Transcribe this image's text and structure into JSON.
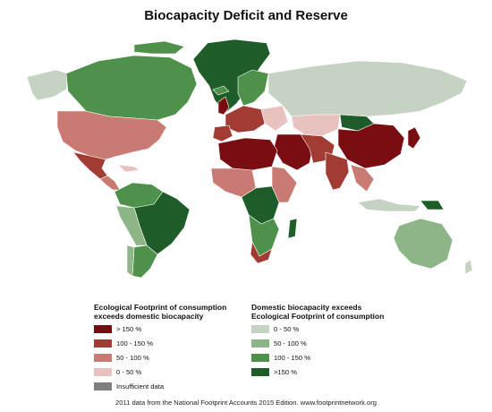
{
  "title": "Biocapacity Deficit and Reserve",
  "footer": "2011 data from the National Footprint Accounts 2015 Edition. www.footprintnetwork.org",
  "legend": {
    "deficit": {
      "title_line1": "Ecological Footprint of consumption",
      "title_line2": "exceeds domestic biocapacity",
      "items": [
        {
          "label": "> 150 %",
          "color": "#7a0d12"
        },
        {
          "label": "100 - 150 %",
          "color": "#a23b33"
        },
        {
          "label": "50 - 100 %",
          "color": "#c97a72"
        },
        {
          "label": "0 - 50 %",
          "color": "#e8c2be"
        },
        {
          "label": "Insufficient data",
          "color": "#7f7f7f"
        }
      ]
    },
    "reserve": {
      "title_line1": "Domestic biocapacity exceeds",
      "title_line2": "Ecological Footprint of consumption",
      "items": [
        {
          "label": "0 - 50 %",
          "color": "#c5d3c2"
        },
        {
          "label": "50 - 100 %",
          "color": "#8cb685"
        },
        {
          "label": "100 - 150 %",
          "color": "#4d914a"
        },
        {
          "label": ">150 %",
          "color": "#1e5c2a"
        }
      ]
    }
  },
  "map_colors": {
    "border": "#ffffff",
    "over150": "#7a0d12",
    "d100_150": "#a23b33",
    "d50_100": "#c97a72",
    "d0_50": "#e8c2be",
    "nodata": "#7f7f7f",
    "r0_50": "#c5d3c2",
    "r50_100": "#8cb685",
    "r100_150": "#4d914a",
    "r150": "#1e5c2a"
  }
}
